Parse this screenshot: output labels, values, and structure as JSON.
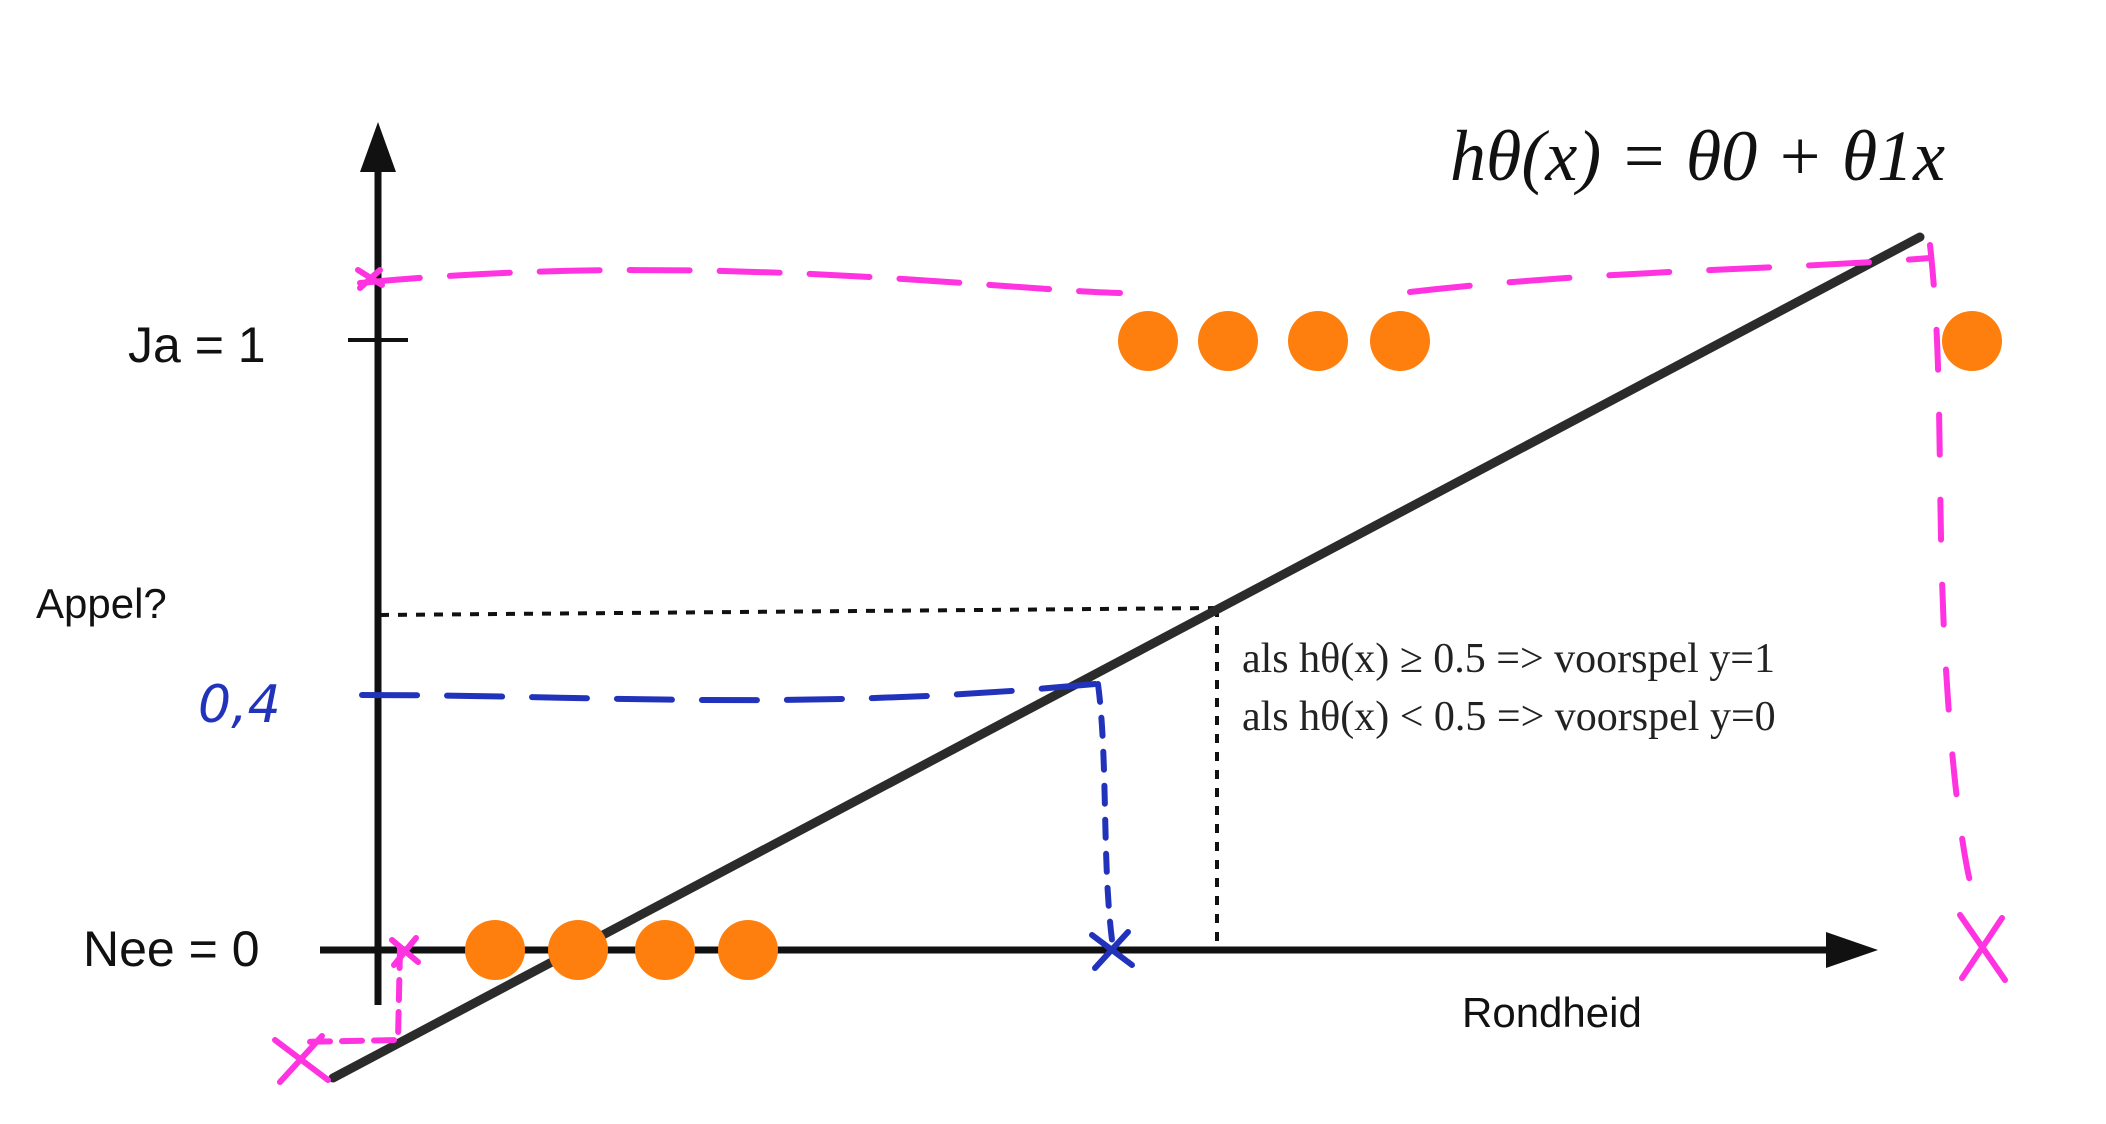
{
  "formula": "hθ(x) = θ0 + θ1x",
  "y_axis": {
    "label": "Appel?",
    "tick_top": "Ja = 1",
    "tick_bottom": "Nee = 0"
  },
  "x_axis": {
    "label": "Rondheid"
  },
  "rules": [
    {
      "text": "als  hθ(x) ≥ 0.5 =>  voorspel y=1"
    },
    {
      "text": "als  hθ(x) < 0.5 =>  voorspel y=0"
    }
  ],
  "annotation_value": "0,4",
  "colors": {
    "points": "#ff7f0e",
    "line": "#2b2b2b",
    "annotation_pink": "#ff33e0",
    "annotation_blue": "#2233bb"
  }
}
